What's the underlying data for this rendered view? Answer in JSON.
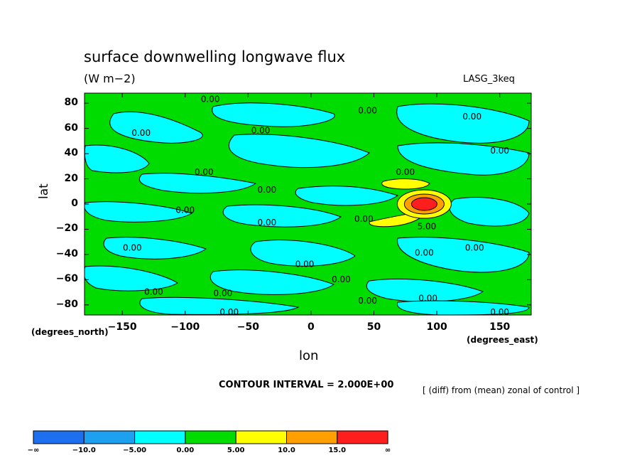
{
  "chart_data": {
    "type": "heatmap",
    "title": "surface downwelling longwave flux",
    "units": "(W m−2)",
    "dataset": "LASG_3keq",
    "xlabel": "lon",
    "ylabel": "lat",
    "x_units": "(degrees_east)",
    "y_units": "(degrees_north)",
    "xlim": [
      -180,
      175
    ],
    "ylim": [
      -88,
      88
    ],
    "x_ticks": [
      "−150",
      "−100",
      "−50",
      "0",
      "50",
      "100",
      "150"
    ],
    "x_tick_values": [
      -150,
      -100,
      -50,
      0,
      50,
      100,
      150
    ],
    "y_ticks": [
      "80",
      "60",
      "40",
      "20",
      "0",
      "−20",
      "−40",
      "−60",
      "−80"
    ],
    "y_tick_values": [
      80,
      60,
      40,
      20,
      0,
      -20,
      -40,
      -60,
      -80
    ],
    "contour_interval": "CONTOUR INTERVAL = 2.000E+00",
    "note": "[ (diff) from (mean) zonal of control ]",
    "colorbar": {
      "colors": [
        "#1e6ef0",
        "#1ea0f0",
        "#00ffff",
        "#00dc00",
        "#ffff00",
        "#ffa000",
        "#ff1e1e"
      ],
      "labels": [
        "−∞",
        "−10.0",
        "−5.00",
        "0.00",
        "5.00",
        "10.0",
        "15.0",
        "∞"
      ]
    },
    "contour_labels": [
      {
        "text": "0.00",
        "lon": -80,
        "lat": 83
      },
      {
        "text": "0.00",
        "lon": 45,
        "lat": 74
      },
      {
        "text": "0.00",
        "lon": 128,
        "lat": 69
      },
      {
        "text": "0.00",
        "lon": -135,
        "lat": 56
      },
      {
        "text": "0.00",
        "lon": -40,
        "lat": 58
      },
      {
        "text": "0.00",
        "lon": 150,
        "lat": 42
      },
      {
        "text": "0.00",
        "lon": -85,
        "lat": 25
      },
      {
        "text": "0.00",
        "lon": 75,
        "lat": 25
      },
      {
        "text": "0.00",
        "lon": -35,
        "lat": 11
      },
      {
        "text": "0.00",
        "lon": -100,
        "lat": -5
      },
      {
        "text": "0.00",
        "lon": -35,
        "lat": -15
      },
      {
        "text": "0.00",
        "lon": 42,
        "lat": -12
      },
      {
        "text": "5.00",
        "lon": 92,
        "lat": -18
      },
      {
        "text": "0.00",
        "lon": -142,
        "lat": -35
      },
      {
        "text": "0.00",
        "lon": 130,
        "lat": -35
      },
      {
        "text": "0.00",
        "lon": 90,
        "lat": -39
      },
      {
        "text": "0.00",
        "lon": 24,
        "lat": -60
      },
      {
        "text": "0.00",
        "lon": -5,
        "lat": -48
      },
      {
        "text": "0.00",
        "lon": -125,
        "lat": -70
      },
      {
        "text": "0.00",
        "lon": -70,
        "lat": -71
      },
      {
        "text": "0.00",
        "lon": 45,
        "lat": -77
      },
      {
        "text": "0.00",
        "lon": 93,
        "lat": -75
      },
      {
        "text": "0.00",
        "lon": -65,
        "lat": -86
      },
      {
        "text": "0.00",
        "lon": 150,
        "lat": -86
      }
    ]
  }
}
